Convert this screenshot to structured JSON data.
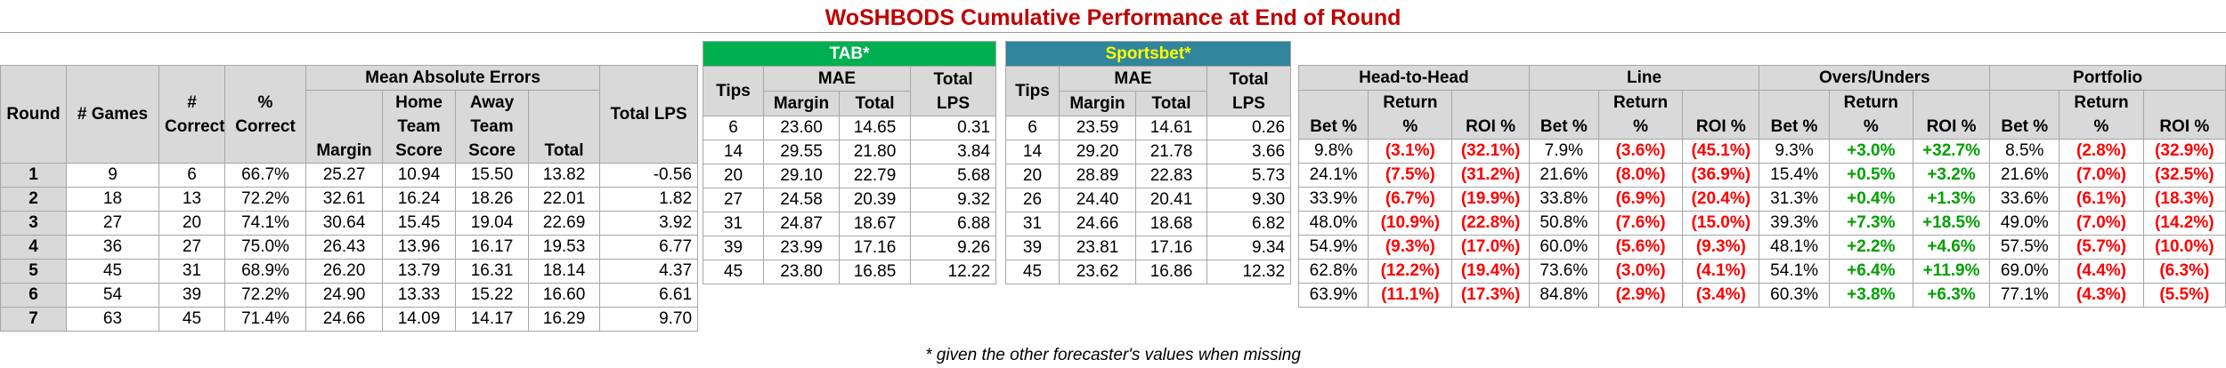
{
  "title": "WoSHBODS Cumulative Performance at End of Round",
  "footnote": "* given the other forecaster's values when missing",
  "woshbods": {
    "group_mae": "Mean Absolute Errors",
    "h_round": "Round",
    "h_games": "# Games",
    "h_correct": "# Correct",
    "h_pct": "% Correct",
    "h_margin": "Margin",
    "h_home": "Home Team Score",
    "h_away": "Away Team Score",
    "h_total": "Total",
    "h_lps": "Total LPS",
    "rows": [
      {
        "round": "1",
        "games": "9",
        "correct": "6",
        "pct": "66.7%",
        "margin": "25.27",
        "home": "10.94",
        "away": "15.50",
        "total": "13.82",
        "lps": "-0.56"
      },
      {
        "round": "2",
        "games": "18",
        "correct": "13",
        "pct": "72.2%",
        "margin": "32.61",
        "home": "16.24",
        "away": "18.26",
        "total": "22.01",
        "lps": "1.82"
      },
      {
        "round": "3",
        "games": "27",
        "correct": "20",
        "pct": "74.1%",
        "margin": "30.64",
        "home": "15.45",
        "away": "19.04",
        "total": "22.69",
        "lps": "3.92"
      },
      {
        "round": "4",
        "games": "36",
        "correct": "27",
        "pct": "75.0%",
        "margin": "26.43",
        "home": "13.96",
        "away": "16.17",
        "total": "19.53",
        "lps": "6.77"
      },
      {
        "round": "5",
        "games": "45",
        "correct": "31",
        "pct": "68.9%",
        "margin": "26.20",
        "home": "13.79",
        "away": "16.31",
        "total": "18.14",
        "lps": "4.37"
      },
      {
        "round": "6",
        "games": "54",
        "correct": "39",
        "pct": "72.2%",
        "margin": "24.90",
        "home": "13.33",
        "away": "15.22",
        "total": "16.60",
        "lps": "6.61"
      },
      {
        "round": "7",
        "games": "63",
        "correct": "45",
        "pct": "71.4%",
        "margin": "24.66",
        "home": "14.09",
        "away": "14.17",
        "total": "16.29",
        "lps": "9.70"
      }
    ]
  },
  "tab": {
    "name": "TAB*",
    "h_tips": "Tips",
    "group_mae": "MAE",
    "h_margin": "Margin",
    "h_total": "Total",
    "h_lps": "Total LPS",
    "rows": [
      {
        "tips": "6",
        "margin": "23.60",
        "total": "14.65",
        "lps": "0.31"
      },
      {
        "tips": "14",
        "margin": "29.55",
        "total": "21.80",
        "lps": "3.84"
      },
      {
        "tips": "20",
        "margin": "29.10",
        "total": "22.79",
        "lps": "5.68"
      },
      {
        "tips": "27",
        "margin": "24.58",
        "total": "20.39",
        "lps": "9.32"
      },
      {
        "tips": "31",
        "margin": "24.87",
        "total": "18.67",
        "lps": "6.88"
      },
      {
        "tips": "39",
        "margin": "23.99",
        "total": "17.16",
        "lps": "9.26"
      },
      {
        "tips": "45",
        "margin": "23.80",
        "total": "16.85",
        "lps": "12.22"
      }
    ]
  },
  "sportsbet": {
    "name": "Sportsbet*",
    "h_tips": "Tips",
    "group_mae": "MAE",
    "h_margin": "Margin",
    "h_total": "Total",
    "h_lps": "Total LPS",
    "rows": [
      {
        "tips": "6",
        "margin": "23.59",
        "total": "14.61",
        "lps": "0.26"
      },
      {
        "tips": "14",
        "margin": "29.20",
        "total": "21.78",
        "lps": "3.66"
      },
      {
        "tips": "20",
        "margin": "28.89",
        "total": "22.83",
        "lps": "5.73"
      },
      {
        "tips": "26",
        "margin": "24.40",
        "total": "20.41",
        "lps": "9.30"
      },
      {
        "tips": "31",
        "margin": "24.66",
        "total": "18.68",
        "lps": "6.82"
      },
      {
        "tips": "39",
        "margin": "23.81",
        "total": "17.16",
        "lps": "9.34"
      },
      {
        "tips": "45",
        "margin": "23.62",
        "total": "16.86",
        "lps": "12.32"
      }
    ]
  },
  "betting": {
    "groups": [
      "Head-to-Head",
      "Line",
      "Overs/Unders",
      "Portfolio"
    ],
    "h_bet": "Bet %",
    "h_return": "Return %",
    "h_roi": "ROI %",
    "rows": [
      {
        "h2h": [
          "9.8%",
          "(3.1%)",
          "(32.1%)"
        ],
        "line": [
          "7.9%",
          "(3.6%)",
          "(45.1%)"
        ],
        "ou": [
          "9.3%",
          "+3.0%",
          "+32.7%"
        ],
        "port": [
          "8.5%",
          "(2.8%)",
          "(32.9%)"
        ]
      },
      {
        "h2h": [
          "24.1%",
          "(7.5%)",
          "(31.2%)"
        ],
        "line": [
          "21.6%",
          "(8.0%)",
          "(36.9%)"
        ],
        "ou": [
          "15.4%",
          "+0.5%",
          "+3.2%"
        ],
        "port": [
          "21.6%",
          "(7.0%)",
          "(32.5%)"
        ]
      },
      {
        "h2h": [
          "33.9%",
          "(6.7%)",
          "(19.9%)"
        ],
        "line": [
          "33.8%",
          "(6.9%)",
          "(20.4%)"
        ],
        "ou": [
          "31.3%",
          "+0.4%",
          "+1.3%"
        ],
        "port": [
          "33.6%",
          "(6.1%)",
          "(18.3%)"
        ]
      },
      {
        "h2h": [
          "48.0%",
          "(10.9%)",
          "(22.8%)"
        ],
        "line": [
          "50.8%",
          "(7.6%)",
          "(15.0%)"
        ],
        "ou": [
          "39.3%",
          "+7.3%",
          "+18.5%"
        ],
        "port": [
          "49.0%",
          "(7.0%)",
          "(14.2%)"
        ]
      },
      {
        "h2h": [
          "54.9%",
          "(9.3%)",
          "(17.0%)"
        ],
        "line": [
          "60.0%",
          "(5.6%)",
          "(9.3%)"
        ],
        "ou": [
          "48.1%",
          "+2.2%",
          "+4.6%"
        ],
        "port": [
          "57.5%",
          "(5.7%)",
          "(10.0%)"
        ]
      },
      {
        "h2h": [
          "62.8%",
          "(12.2%)",
          "(19.4%)"
        ],
        "line": [
          "73.6%",
          "(3.0%)",
          "(4.1%)"
        ],
        "ou": [
          "54.1%",
          "+6.4%",
          "+11.9%"
        ],
        "port": [
          "69.0%",
          "(4.4%)",
          "(6.3%)"
        ]
      },
      {
        "h2h": [
          "63.9%",
          "(11.1%)",
          "(17.3%)"
        ],
        "line": [
          "84.8%",
          "(2.9%)",
          "(3.4%)"
        ],
        "ou": [
          "60.3%",
          "+3.8%",
          "+6.3%"
        ],
        "port": [
          "77.1%",
          "(4.3%)",
          "(5.5%)"
        ]
      }
    ]
  },
  "colors": {
    "title": "#c00000",
    "negative": "#ff0000",
    "positive": "#00a000",
    "tab_header": "#00b050",
    "sportsbet_header": "#31859c",
    "sportsbet_text": "#ffff00",
    "header_fill": "#d9d9d9"
  }
}
